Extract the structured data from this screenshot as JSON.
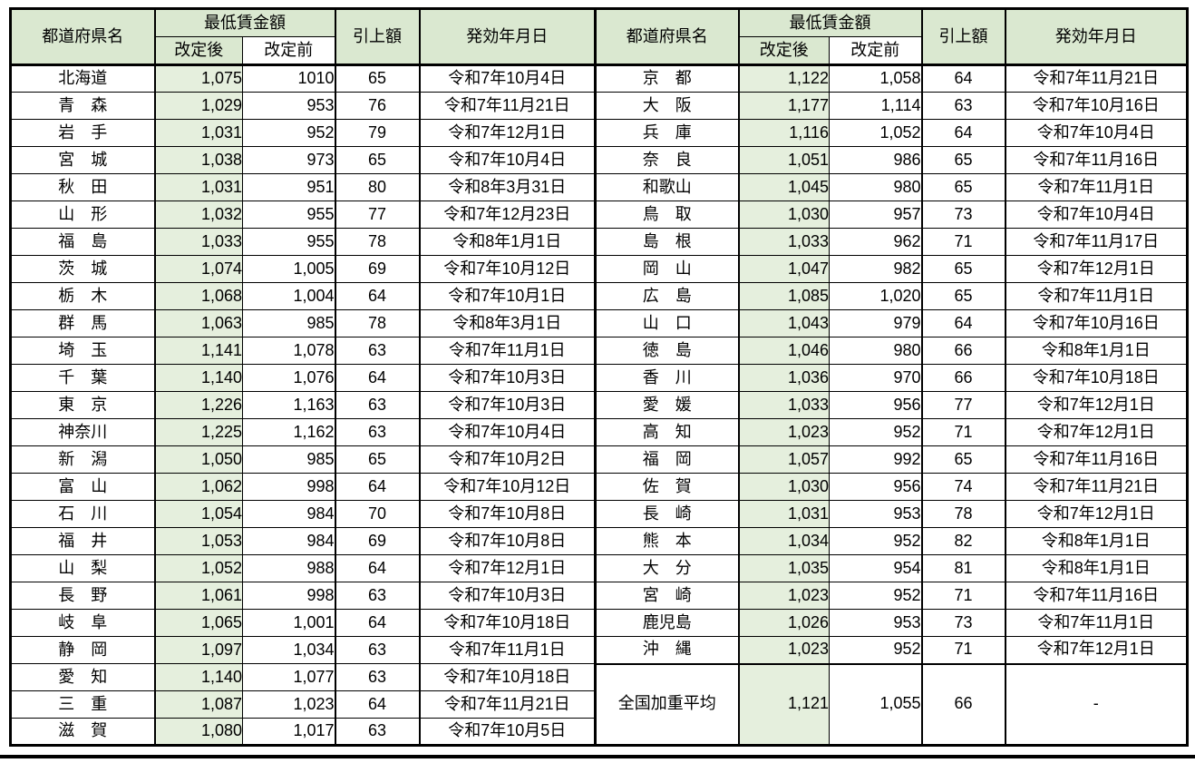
{
  "colors": {
    "header_green": "#DAE8D0",
    "cell_green": "#E5EFDD",
    "border_black": "#000000",
    "text_black": "#000000"
  },
  "table_header": {
    "prefecture": "都道府県名",
    "min_wage_group": "最低賃金額",
    "revised_after": "改定後",
    "revised_before": "改定前",
    "raise_amount": "引上額",
    "effective_date": "発効年月日"
  },
  "left_table": {
    "rows": [
      [
        "北海道",
        "1,075",
        "1010",
        "65",
        "令和7年10月4日"
      ],
      [
        "青　森",
        "1,029",
        "953",
        "76",
        "令和7年11月21日"
      ],
      [
        "岩　手",
        "1,031",
        "952",
        "79",
        "令和7年12月1日"
      ],
      [
        "宮　城",
        "1,038",
        "973",
        "65",
        "令和7年10月4日"
      ],
      [
        "秋　田",
        "1,031",
        "951",
        "80",
        "令和8年3月31日"
      ],
      [
        "山　形",
        "1,032",
        "955",
        "77",
        "令和7年12月23日"
      ],
      [
        "福　島",
        "1,033",
        "955",
        "78",
        "令和8年1月1日"
      ],
      [
        "茨　城",
        "1,074",
        "1,005",
        "69",
        "令和7年10月12日"
      ],
      [
        "栃　木",
        "1,068",
        "1,004",
        "64",
        "令和7年10月1日"
      ],
      [
        "群　馬",
        "1,063",
        "985",
        "78",
        "令和8年3月1日"
      ],
      [
        "埼　玉",
        "1,141",
        "1,078",
        "63",
        "令和7年11月1日"
      ],
      [
        "千　葉",
        "1,140",
        "1,076",
        "64",
        "令和7年10月3日"
      ],
      [
        "東　京",
        "1,226",
        "1,163",
        "63",
        "令和7年10月3日"
      ],
      [
        "神奈川",
        "1,225",
        "1,162",
        "63",
        "令和7年10月4日"
      ],
      [
        "新　潟",
        "1,050",
        "985",
        "65",
        "令和7年10月2日"
      ],
      [
        "富　山",
        "1,062",
        "998",
        "64",
        "令和7年10月12日"
      ],
      [
        "石　川",
        "1,054",
        "984",
        "70",
        "令和7年10月8日"
      ],
      [
        "福　井",
        "1,053",
        "984",
        "69",
        "令和7年10月8日"
      ],
      [
        "山　梨",
        "1,052",
        "988",
        "64",
        "令和7年12月1日"
      ],
      [
        "長　野",
        "1,061",
        "998",
        "63",
        "令和7年10月3日"
      ],
      [
        "岐　阜",
        "1,065",
        "1,001",
        "64",
        "令和7年10月18日"
      ],
      [
        "静　岡",
        "1,097",
        "1,034",
        "63",
        "令和7年11月1日"
      ],
      [
        "愛　知",
        "1,140",
        "1,077",
        "63",
        "令和7年10月18日"
      ],
      [
        "三　重",
        "1,087",
        "1,023",
        "64",
        "令和7年11月21日"
      ],
      [
        "滋　賀",
        "1,080",
        "1,017",
        "63",
        "令和7年10月5日"
      ]
    ]
  },
  "right_table": {
    "rows": [
      [
        "京　都",
        "1,122",
        "1,058",
        "64",
        "令和7年11月21日"
      ],
      [
        "大　阪",
        "1,177",
        "1,114",
        "63",
        "令和7年10月16日"
      ],
      [
        "兵　庫",
        "1,116",
        "1,052",
        "64",
        "令和7年10月4日"
      ],
      [
        "奈　良",
        "1,051",
        "986",
        "65",
        "令和7年11月16日"
      ],
      [
        "和歌山",
        "1,045",
        "980",
        "65",
        "令和7年11月1日"
      ],
      [
        "鳥　取",
        "1,030",
        "957",
        "73",
        "令和7年10月4日"
      ],
      [
        "島　根",
        "1,033",
        "962",
        "71",
        "令和7年11月17日"
      ],
      [
        "岡　山",
        "1,047",
        "982",
        "65",
        "令和7年12月1日"
      ],
      [
        "広　島",
        "1,085",
        "1,020",
        "65",
        "令和7年11月1日"
      ],
      [
        "山　口",
        "1,043",
        "979",
        "64",
        "令和7年10月16日"
      ],
      [
        "徳　島",
        "1,046",
        "980",
        "66",
        "令和8年1月1日"
      ],
      [
        "香　川",
        "1,036",
        "970",
        "66",
        "令和7年10月18日"
      ],
      [
        "愛　媛",
        "1,033",
        "956",
        "77",
        "令和7年12月1日"
      ],
      [
        "高　知",
        "1,023",
        "952",
        "71",
        "令和7年12月1日"
      ],
      [
        "福　岡",
        "1,057",
        "992",
        "65",
        "令和7年11月16日"
      ],
      [
        "佐　賀",
        "1,030",
        "956",
        "74",
        "令和7年11月21日"
      ],
      [
        "長　崎",
        "1,031",
        "953",
        "78",
        "令和7年12月1日"
      ],
      [
        "熊　本",
        "1,034",
        "952",
        "82",
        "令和8年1月1日"
      ],
      [
        "大　分",
        "1,035",
        "954",
        "81",
        "令和8年1月1日"
      ],
      [
        "宮　崎",
        "1,023",
        "952",
        "71",
        "令和7年11月16日"
      ],
      [
        "鹿児島",
        "1,026",
        "953",
        "73",
        "令和7年11月1日"
      ],
      [
        "沖　縄",
        "1,023",
        "952",
        "71",
        "令和7年12月1日"
      ]
    ],
    "summary_row": {
      "label": "全国加重平均",
      "after": "1,121",
      "before": "1,055",
      "raise": "66",
      "date": "-"
    }
  }
}
